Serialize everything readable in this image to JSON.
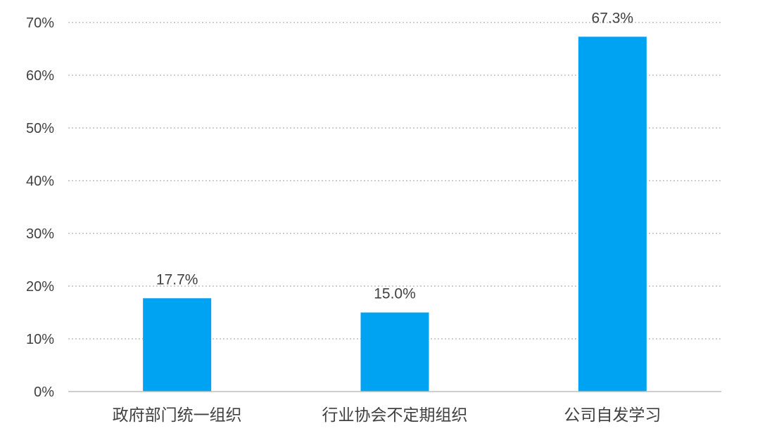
{
  "chart_data": {
    "type": "bar",
    "categories": [
      "政府部门统一组织",
      "行业协会不定期组织",
      "公司自发学习"
    ],
    "values": [
      17.7,
      15.0,
      67.3
    ],
    "data_labels": [
      "17.7%",
      "15.0%",
      "67.3%"
    ],
    "y_ticks": [
      "0%",
      "10%",
      "20%",
      "30%",
      "40%",
      "50%",
      "60%",
      "70%"
    ],
    "ylim": [
      0,
      70
    ],
    "title": "",
    "xlabel": "",
    "ylabel": "",
    "grid": true,
    "grid_style": "dotted",
    "legend": "none",
    "bar_color": "#00a2f2",
    "text_color": "#404040",
    "grid_color": "#bfbfbf"
  }
}
